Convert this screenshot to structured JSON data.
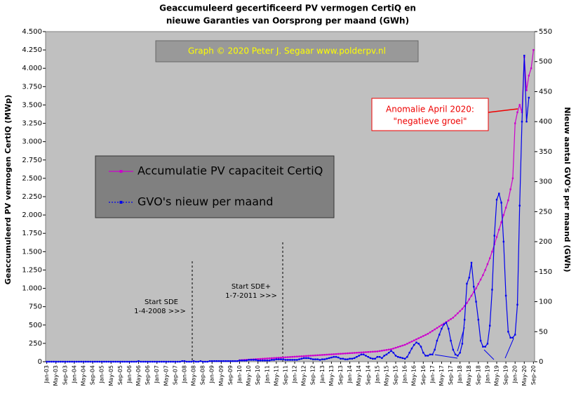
{
  "chart_data": {
    "type": "line",
    "title": "Geaccumuleerd gecertificeerd PV vermogen CertiQ en",
    "subtitle": "nieuwe Garanties van Oorsprong per maand (GWh)",
    "ylabel": "Geaccumuleerd PV vermogen CertiQ (MWp)",
    "y2label": "Nieuw aantal GVO's per maand (GWh)",
    "credit": "Graph © 2020 Peter J. Segaar www.polderpv.nl",
    "annotations": [
      "Start SDE",
      "1-4-2008 >>>",
      "Start SDE+",
      "1-7-2011 >>>",
      "Anomalie April 2020:",
      "\"negatieve groei\""
    ],
    "ylim": [
      0,
      4500
    ],
    "yticks": [
      0,
      250,
      500,
      750,
      {
        "value": 1000,
        "label": "1.000"
      },
      {
        "value": 1250,
        "label": "1.250"
      },
      {
        "value": 1500,
        "label": "1.500"
      },
      {
        "value": 1750,
        "label": "1.750"
      },
      {
        "value": 2000,
        "label": "2.000"
      },
      {
        "value": 2250,
        "label": "2.250"
      },
      {
        "value": 2500,
        "label": "2.500"
      },
      {
        "value": 2750,
        "label": "2.750"
      },
      {
        "value": 3000,
        "label": "3.000"
      },
      {
        "value": 3250,
        "label": "3.250"
      },
      {
        "value": 3500,
        "label": "3.500"
      },
      {
        "value": 3750,
        "label": "3.750"
      },
      {
        "value": 4000,
        "label": "4.000"
      },
      {
        "value": 4250,
        "label": "4.250"
      },
      {
        "value": 4500,
        "label": "4.500"
      }
    ],
    "y2lim": [
      0,
      550
    ],
    "y2ticks": [
      0,
      50,
      100,
      150,
      200,
      250,
      300,
      350,
      400,
      450,
      500,
      550
    ],
    "categories": [
      "Jan-03",
      null,
      null,
      null,
      "May-03",
      null,
      null,
      null,
      "Sep-03",
      null,
      null,
      null,
      "Jan-04",
      null,
      null,
      null,
      "May-04",
      null,
      null,
      null,
      "Sep-04",
      null,
      null,
      null,
      "Jan-05",
      null,
      null,
      null,
      "May-05",
      null,
      null,
      null,
      "Sep-05",
      null,
      null,
      null,
      "Jan-06",
      null,
      null,
      null,
      "May-06",
      null,
      null,
      null,
      "Sep-06",
      null,
      null,
      null,
      "Jan-07",
      null,
      null,
      null,
      "May-07",
      null,
      null,
      null,
      "Sep-07",
      null,
      null,
      null,
      "Jan-08",
      null,
      null,
      null,
      "May-08",
      null,
      null,
      null,
      "Sep-08",
      null,
      null,
      null,
      "Jan-09",
      null,
      null,
      null,
      "May-09",
      null,
      null,
      null,
      "Sep-09",
      null,
      null,
      null,
      "Jan-10",
      null,
      null,
      null,
      "May-10",
      null,
      null,
      null,
      "Sep-10",
      null,
      null,
      null,
      "Jan-11",
      null,
      null,
      null,
      "May-11",
      null,
      null,
      null,
      "Sep-11",
      null,
      null,
      null,
      "Jan-12",
      null,
      null,
      null,
      "May-12",
      null,
      null,
      null,
      "Sep-12",
      null,
      null,
      null,
      "Jan-13",
      null,
      null,
      null,
      "May-13",
      null,
      null,
      null,
      "Sep-13",
      null,
      null,
      null,
      "Jan-14",
      null,
      null,
      null,
      "May-14",
      null,
      null,
      null,
      "Sep-14",
      null,
      null,
      null,
      "Jan-15",
      null,
      null,
      null,
      "May-15",
      null,
      null,
      null,
      "Sep-15",
      null,
      null,
      null,
      "Jan-16",
      null,
      null,
      null,
      "May-16",
      null,
      null,
      null,
      "Sep-16",
      null,
      null,
      null,
      "Jan-17",
      null,
      null,
      null,
      "May-17",
      null,
      null,
      null,
      "Sep-17",
      null,
      null,
      null,
      "Jan-18",
      null,
      null,
      null,
      "May-18",
      null,
      null,
      null,
      "Sep-18",
      null,
      null,
      null,
      "Jan-19",
      null,
      null,
      null,
      "May-19",
      null,
      null,
      null,
      "Sep-19",
      null,
      null,
      null,
      "Jan-20",
      null,
      null,
      null,
      "May-20",
      null,
      null,
      null,
      "Sep-20"
    ],
    "series": [
      {
        "name": "Accumulatie PV capaciteit CertiQ",
        "color": "#cc00cc",
        "values": [
          null,
          null,
          null,
          null,
          null,
          null,
          null,
          null,
          null,
          null,
          null,
          null,
          null,
          null,
          null,
          null,
          null,
          null,
          null,
          null,
          null,
          null,
          null,
          null,
          null,
          null,
          null,
          null,
          null,
          null,
          null,
          null,
          null,
          null,
          null,
          null,
          null,
          null,
          null,
          null,
          null,
          null,
          null,
          null,
          null,
          null,
          null,
          null,
          null,
          null,
          null,
          null,
          null,
          null,
          null,
          null,
          null,
          null,
          null,
          null,
          null,
          null,
          null,
          null,
          null,
          null,
          null,
          null,
          null,
          null,
          null,
          null,
          null,
          null,
          null,
          null,
          null,
          null,
          null,
          null,
          null,
          null,
          null,
          null,
          20,
          22,
          24,
          26,
          28,
          30,
          32,
          34,
          36,
          38,
          40,
          42,
          44,
          46,
          48,
          50,
          52,
          54,
          56,
          58,
          60,
          62,
          64,
          66,
          68,
          70,
          72,
          74,
          76,
          78,
          80,
          82,
          84,
          86,
          88,
          90,
          92,
          94,
          96,
          98,
          100,
          102,
          104,
          106,
          108,
          110,
          112,
          114,
          116,
          118,
          120,
          122,
          124,
          126,
          128,
          130,
          132,
          134,
          136,
          138,
          140,
          145,
          150,
          155,
          160,
          165,
          170,
          180,
          190,
          200,
          210,
          220,
          230,
          245,
          260,
          275,
          290,
          305,
          320,
          335,
          350,
          365,
          380,
          400,
          420,
          440,
          460,
          480,
          500,
          520,
          540,
          560,
          580,
          600,
          630,
          660,
          690,
          720,
          760,
          800,
          850,
          900,
          950,
          1000,
          1060,
          1120,
          1180,
          1250,
          1330,
          1410,
          1500,
          1600,
          1700,
          1800,
          1900,
          2000,
          2100,
          2200,
          2350,
          2500,
          3250,
          3400,
          3500,
          3400,
          4150,
          3700,
          3900,
          4000,
          4250
        ]
      },
      {
        "name": "GVO's nieuw per maand",
        "color": "#0000ee",
        "axis": "y2",
        "values": [
          0,
          0,
          0,
          0,
          0,
          0,
          0,
          0,
          0,
          0,
          0,
          0,
          0,
          0,
          0,
          0,
          0,
          0,
          0,
          0,
          0,
          0,
          0,
          0,
          0,
          0,
          0,
          0,
          0,
          0,
          0,
          0,
          0,
          0,
          0,
          0,
          0,
          0,
          0,
          0,
          1,
          0,
          0,
          0,
          0,
          0,
          0,
          0,
          0,
          0,
          0,
          0,
          0,
          0,
          0,
          0,
          0,
          0,
          0,
          1,
          1,
          0,
          0,
          0,
          1,
          0,
          0,
          1,
          0,
          0,
          0,
          1,
          1,
          1,
          1,
          1,
          1,
          1,
          1,
          1,
          1,
          1,
          1,
          1,
          2,
          2,
          2,
          2,
          3,
          3,
          3,
          3,
          2,
          2,
          2,
          2,
          2,
          2,
          3,
          3,
          4,
          4,
          4,
          4,
          3,
          3,
          3,
          3,
          3,
          3,
          4,
          5,
          6,
          6,
          6,
          5,
          4,
          4,
          4,
          3,
          4,
          4,
          5,
          6,
          7,
          8,
          8,
          7,
          5,
          5,
          4,
          4,
          5,
          5,
          6,
          8,
          10,
          12,
          12,
          10,
          8,
          6,
          5,
          5,
          8,
          8,
          6,
          10,
          12,
          15,
          18,
          15,
          10,
          8,
          7,
          6,
          5,
          8,
          15,
          22,
          28,
          32,
          30,
          25,
          15,
          10,
          10,
          12,
          12,
          20,
          35,
          45,
          55,
          62,
          65,
          55,
          35,
          20,
          12,
          10,
          15,
          30,
          70,
          130,
          140,
          165,
          125,
          100,
          70,
          35,
          25,
          25,
          30,
          60,
          120,
          210,
          270,
          280,
          265,
          200,
          110,
          50,
          40,
          40,
          45,
          95,
          260,
          400,
          510,
          400,
          440,
          null,
          null
        ]
      }
    ]
  }
}
